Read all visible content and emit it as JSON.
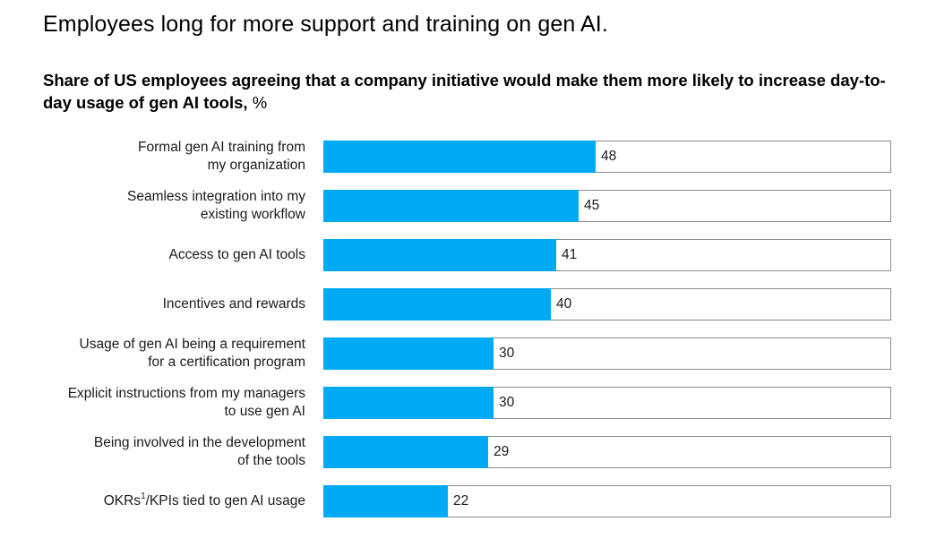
{
  "header": {
    "title": "Employees long for more support and training on gen AI.",
    "subtitle": "Share of US employees agreeing that a company initiative would make them more likely to increase day-to-day usage of gen AI tools,",
    "unit": "%"
  },
  "colors": {
    "bar": "#00a9f4",
    "track_border": "#8a8a8a"
  },
  "chart_data": {
    "type": "bar",
    "orientation": "horizontal",
    "title": "Employees long for more support and training on gen AI.",
    "subtitle": "Share of US employees agreeing that a company initiative would make them more likely to increase day-to-day usage of gen AI tools, %",
    "categories": [
      [
        "Formal gen AI training from",
        "my organization"
      ],
      [
        "Seamless integration into my",
        "existing workflow"
      ],
      [
        "Access to gen AI tools"
      ],
      [
        "Incentives and rewards"
      ],
      [
        "Usage of gen AI being a requirement",
        "for a certification program"
      ],
      [
        "Explicit instructions from my managers",
        "to use gen AI"
      ],
      [
        "Being involved in the development",
        "of the tools"
      ],
      [
        "OKRs¹/KPIs tied to gen AI usage"
      ]
    ],
    "values": [
      48,
      45,
      41,
      40,
      30,
      30,
      29,
      22
    ],
    "xlim": [
      0,
      100
    ],
    "xlabel": "",
    "ylabel": "",
    "grid": false,
    "legend": "none"
  }
}
